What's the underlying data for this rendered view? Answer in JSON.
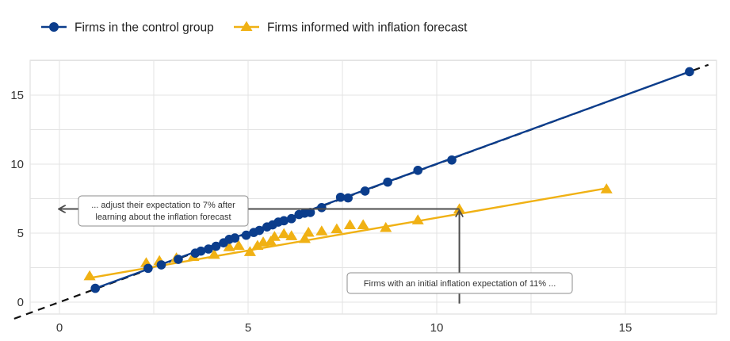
{
  "chart_data": {
    "type": "scatter",
    "title": "",
    "xlabel": "",
    "ylabel": "",
    "xlim": [
      -1.5,
      17.5
    ],
    "ylim": [
      -0.6,
      17.5
    ],
    "xticks": [
      0,
      5,
      10,
      15
    ],
    "yticks": [
      0,
      5,
      10,
      15
    ],
    "grid": true,
    "legend_position": "top-left",
    "series": [
      {
        "name": "Firms in the control group",
        "color": "#0b3d8c",
        "marker": "circle",
        "points": [
          [
            0.95,
            1.0
          ],
          [
            2.35,
            2.45
          ],
          [
            2.7,
            2.7
          ],
          [
            3.15,
            3.1
          ],
          [
            3.6,
            3.55
          ],
          [
            3.75,
            3.7
          ],
          [
            3.95,
            3.85
          ],
          [
            4.15,
            4.05
          ],
          [
            4.35,
            4.3
          ],
          [
            4.5,
            4.55
          ],
          [
            4.65,
            4.65
          ],
          [
            4.95,
            4.85
          ],
          [
            5.15,
            5.05
          ],
          [
            5.3,
            5.2
          ],
          [
            5.5,
            5.45
          ],
          [
            5.65,
            5.6
          ],
          [
            5.8,
            5.8
          ],
          [
            5.95,
            5.9
          ],
          [
            6.15,
            6.05
          ],
          [
            6.35,
            6.35
          ],
          [
            6.5,
            6.45
          ],
          [
            6.65,
            6.5
          ],
          [
            6.95,
            6.85
          ],
          [
            7.45,
            7.6
          ],
          [
            7.65,
            7.55
          ],
          [
            8.1,
            8.05
          ],
          [
            8.7,
            8.7
          ],
          [
            9.5,
            9.55
          ],
          [
            10.4,
            10.3
          ],
          [
            16.7,
            16.7
          ]
        ],
        "fit": {
          "x": [
            0.95,
            16.7
          ],
          "y": [
            1.0,
            16.7
          ]
        }
      },
      {
        "name": "Firms informed with inflation forecast",
        "color": "#f0b114",
        "marker": "triangle",
        "points": [
          [
            0.8,
            1.9
          ],
          [
            2.3,
            2.85
          ],
          [
            2.65,
            3.0
          ],
          [
            3.1,
            3.2
          ],
          [
            3.55,
            3.3
          ],
          [
            4.1,
            3.45
          ],
          [
            4.5,
            4.0
          ],
          [
            4.75,
            4.1
          ],
          [
            5.05,
            3.65
          ],
          [
            5.25,
            4.1
          ],
          [
            5.4,
            4.35
          ],
          [
            5.6,
            4.4
          ],
          [
            5.7,
            4.75
          ],
          [
            5.95,
            4.95
          ],
          [
            6.15,
            4.8
          ],
          [
            6.5,
            4.6
          ],
          [
            6.6,
            5.05
          ],
          [
            6.95,
            5.15
          ],
          [
            7.35,
            5.3
          ],
          [
            7.7,
            5.6
          ],
          [
            8.05,
            5.6
          ],
          [
            8.65,
            5.4
          ],
          [
            9.5,
            5.95
          ],
          [
            10.6,
            6.75
          ],
          [
            14.5,
            8.2
          ]
        ],
        "fit": {
          "x": [
            0.8,
            14.5
          ],
          "y": [
            1.75,
            8.25
          ]
        }
      }
    ],
    "reference_line": {
      "style": "dashed",
      "color": "#111111",
      "x": [
        -1.2,
        17.2
      ],
      "y": [
        -1.2,
        17.2
      ]
    },
    "annotations": [
      {
        "text": "... adjust their expectation to 7% after learning about the inflation forecast",
        "lines": [
          "... adjust their expectation to 7% after",
          "learning about the inflation forecast"
        ],
        "arrow": {
          "from": [
            10.6,
            6.75
          ],
          "to": [
            0.0,
            6.75
          ]
        }
      },
      {
        "text": "Firms with an initial inflation expectation of 11% ...",
        "lines": [
          "Firms with an initial inflation expectation of 11% ..."
        ],
        "arrow": {
          "from": [
            10.6,
            -0.1
          ],
          "to": [
            10.6,
            6.6
          ]
        }
      }
    ]
  }
}
